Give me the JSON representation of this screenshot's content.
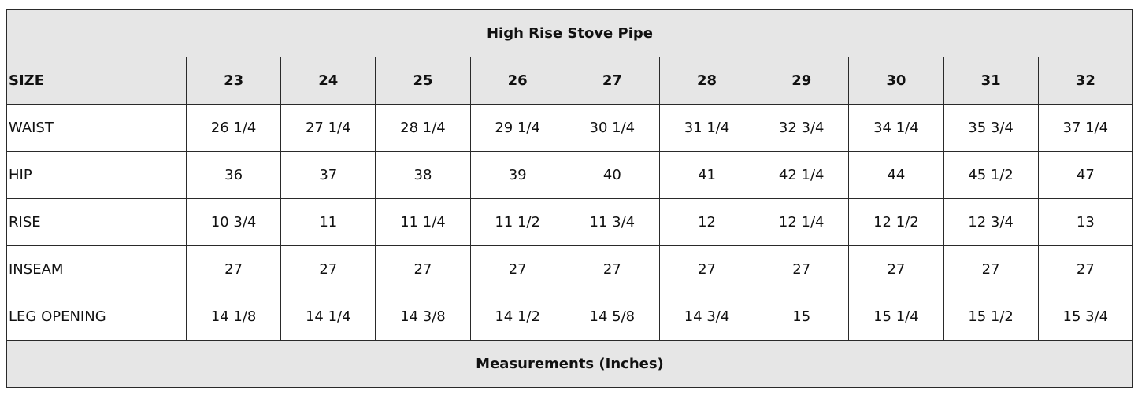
{
  "table": {
    "title": "High Rise Stove Pipe",
    "header": {
      "label": "SIZE",
      "sizes": [
        "23",
        "24",
        "25",
        "26",
        "27",
        "28",
        "29",
        "30",
        "31",
        "32"
      ]
    },
    "rows": [
      {
        "label": "WAIST",
        "values": [
          "26  1/4",
          "27 1/4",
          "28 1/4",
          "29 1/4",
          "30 1/4",
          "31 1/4",
          "32 3/4",
          "34 1/4",
          "35 3/4",
          "37 1/4"
        ]
      },
      {
        "label": "HIP",
        "values": [
          "36",
          "37",
          "38",
          "39",
          "40",
          "41",
          "42 1/4",
          "44",
          "45 1/2",
          "47"
        ]
      },
      {
        "label": "RISE",
        "values": [
          "10 3/4",
          "11",
          "11 1/4",
          "11 1/2",
          "11 3/4",
          "12",
          "12 1/4",
          "12 1/2",
          "12 3/4",
          "13"
        ]
      },
      {
        "label": "INSEAM",
        "values": [
          "27",
          "27",
          "27",
          "27",
          "27",
          "27",
          "27",
          "27",
          "27",
          "27"
        ]
      },
      {
        "label": "LEG OPENING",
        "values": [
          "14 1/8",
          "14 1/4",
          "14 3/8",
          "14 1/2",
          "14 5/8",
          "14 3/4",
          "15",
          "15 1/4",
          "15 1/2",
          "15 3/4"
        ]
      }
    ],
    "footer": "Measurements (Inches)"
  },
  "colors": {
    "header_background": "#e6e6e6",
    "border": "#2a2a2a",
    "text": "#111111"
  }
}
